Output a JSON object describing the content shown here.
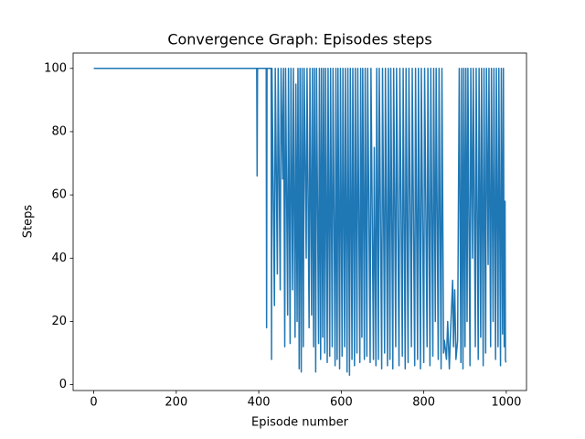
{
  "chart_data": {
    "type": "line",
    "title": "Convergence Graph: Episodes steps",
    "x_label": "Episode number",
    "y_label": "Steps",
    "color": "#1f77b4",
    "x": [
      0,
      395,
      396,
      397,
      418,
      419,
      420,
      430,
      431,
      432,
      438,
      440,
      445,
      447,
      452,
      454,
      458,
      460,
      463,
      465,
      470,
      472,
      476,
      478,
      482,
      484,
      488,
      490,
      493,
      495,
      498,
      500,
      503,
      505,
      508,
      510,
      515,
      517,
      522,
      524,
      528,
      530,
      533,
      535,
      538,
      540,
      545,
      547,
      550,
      552,
      555,
      557,
      560,
      562,
      566,
      568,
      572,
      574,
      578,
      580,
      585,
      587,
      590,
      592,
      596,
      598,
      602,
      604,
      608,
      610,
      614,
      616,
      620,
      622,
      626,
      628,
      632,
      634,
      638,
      640,
      645,
      647,
      650,
      652,
      656,
      658,
      662,
      664,
      670,
      672,
      678,
      680,
      684,
      686,
      690,
      692,
      698,
      700,
      705,
      707,
      712,
      714,
      718,
      720,
      725,
      727,
      732,
      734,
      740,
      742,
      748,
      750,
      755,
      757,
      762,
      764,
      770,
      772,
      778,
      780,
      785,
      787,
      792,
      794,
      800,
      802,
      808,
      810,
      815,
      817,
      822,
      824,
      828,
      830,
      835,
      837,
      842,
      844,
      848,
      850,
      855,
      858,
      862,
      865,
      870,
      872,
      875,
      878,
      882,
      886,
      890,
      892,
      895,
      897,
      900,
      902,
      905,
      907,
      912,
      914,
      918,
      920,
      925,
      927,
      932,
      934,
      938,
      940,
      944,
      946,
      950,
      952,
      956,
      958,
      962,
      964,
      968,
      970,
      974,
      976,
      980,
      982,
      986,
      988,
      991,
      993,
      995,
      997,
      998,
      999
    ],
    "values": [
      100,
      100,
      66,
      100,
      100,
      18,
      100,
      100,
      8,
      100,
      25,
      100,
      35,
      100,
      30,
      100,
      65,
      100,
      12,
      100,
      22,
      100,
      13,
      100,
      30,
      100,
      15,
      95,
      20,
      100,
      5,
      100,
      4,
      100,
      12,
      100,
      40,
      100,
      18,
      100,
      22,
      100,
      12,
      100,
      4,
      100,
      13,
      100,
      8,
      100,
      15,
      100,
      10,
      100,
      7,
      100,
      9,
      100,
      12,
      100,
      6,
      100,
      8,
      100,
      5,
      100,
      9,
      100,
      12,
      100,
      4,
      100,
      3,
      100,
      8,
      100,
      6,
      100,
      10,
      100,
      7,
      100,
      15,
      100,
      8,
      100,
      9,
      100,
      7,
      100,
      8,
      75,
      6,
      100,
      8,
      100,
      5,
      100,
      10,
      100,
      6,
      100,
      8,
      100,
      5,
      100,
      12,
      100,
      6,
      100,
      9,
      100,
      5,
      100,
      7,
      100,
      12,
      100,
      6,
      100,
      8,
      100,
      5,
      100,
      7,
      100,
      12,
      100,
      6,
      100,
      9,
      100,
      20,
      100,
      8,
      100,
      5,
      100,
      10,
      14,
      8,
      20,
      5,
      17,
      33,
      12,
      30,
      8,
      14,
      100,
      7,
      100,
      5,
      100,
      12,
      100,
      20,
      100,
      6,
      100,
      40,
      100,
      12,
      100,
      8,
      100,
      15,
      100,
      6,
      100,
      10,
      100,
      38,
      100,
      12,
      100,
      20,
      100,
      8,
      100,
      12,
      100,
      6,
      100,
      16,
      100,
      12,
      58,
      8,
      7
    ],
    "xlim": [
      -50,
      1049
    ],
    "ylim": [
      -1.85,
      104.85
    ],
    "xticks": [
      0,
      200,
      400,
      600,
      800,
      1000
    ],
    "yticks": [
      0,
      20,
      40,
      60,
      80,
      100
    ]
  }
}
